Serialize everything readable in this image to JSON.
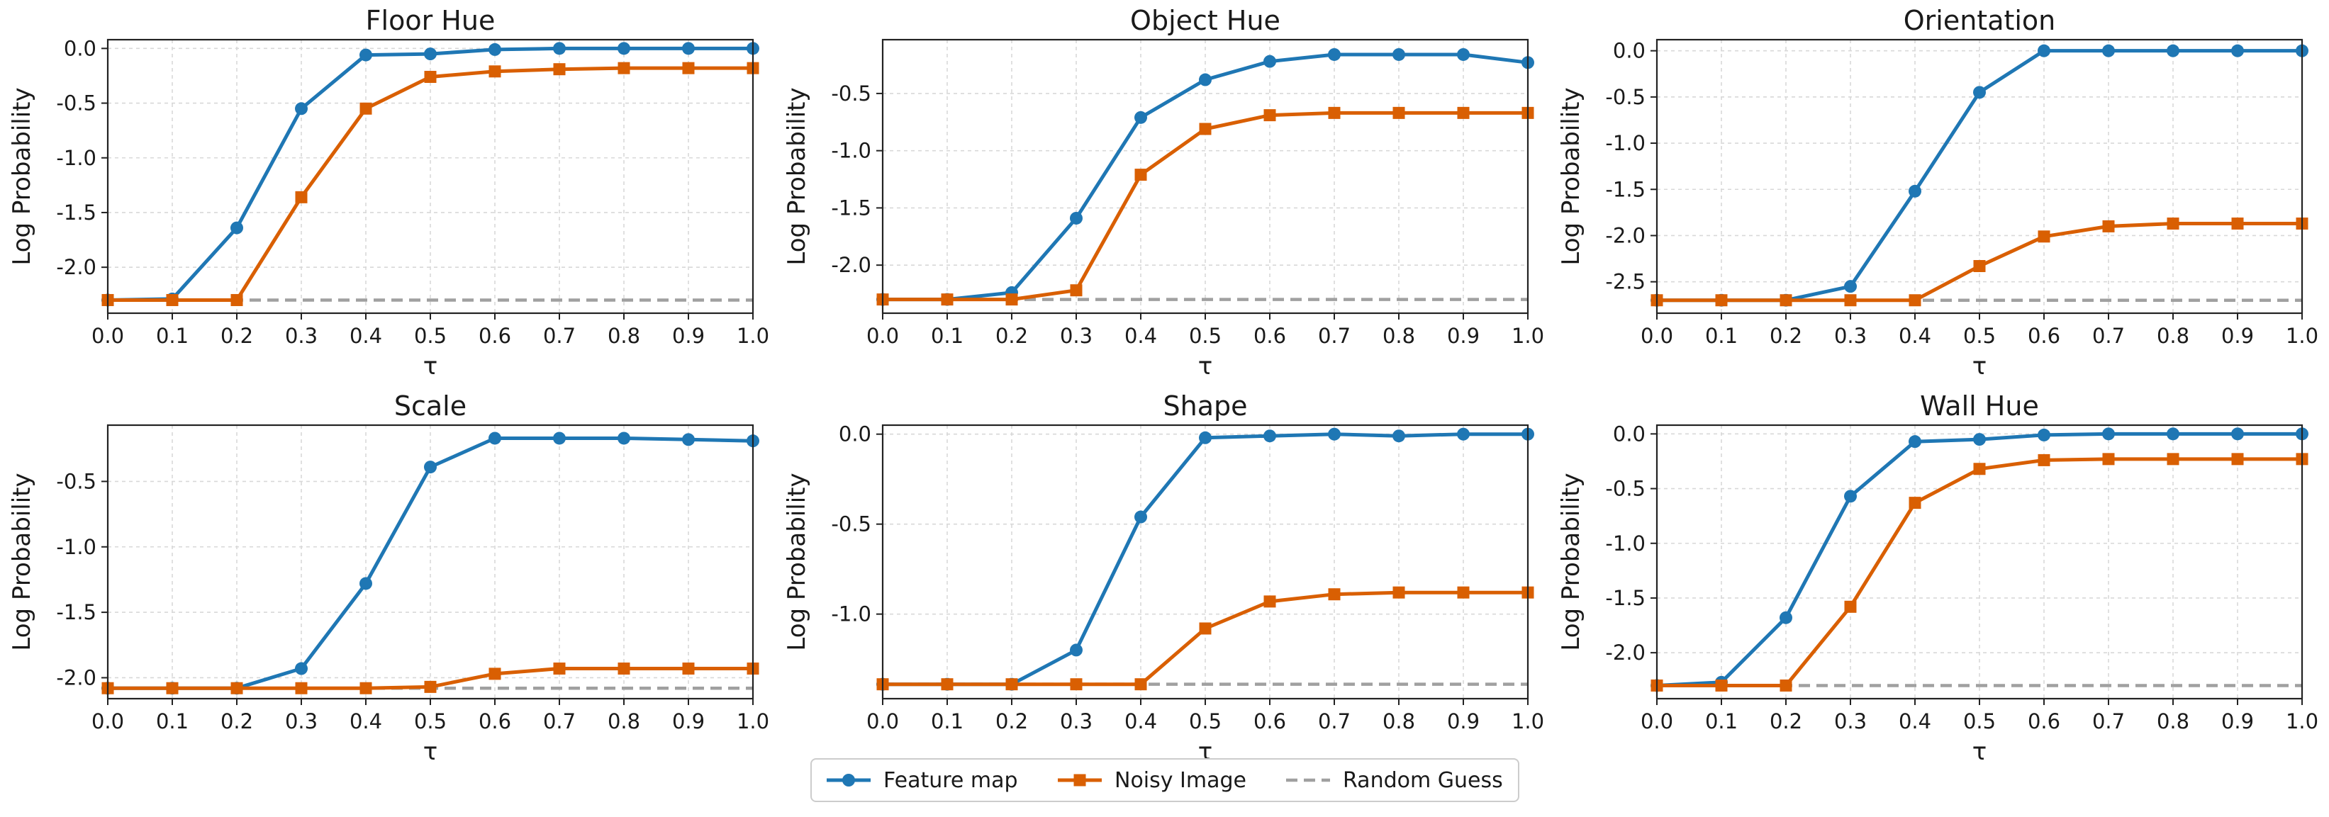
{
  "colors": {
    "feature_map": "#1f77b4",
    "noisy_image": "#d95f02",
    "random_guess": "#a0a0a0"
  },
  "legend": {
    "placement": "bottom-center",
    "items": [
      {
        "label": "Feature map",
        "marker": "circle",
        "line": "solid"
      },
      {
        "label": "Noisy Image",
        "marker": "square",
        "line": "solid"
      },
      {
        "label": "Random Guess",
        "marker": "none",
        "line": "dashed"
      }
    ]
  },
  "chart_data": [
    {
      "type": "line",
      "title": "Floor Hue",
      "xlabel": "τ",
      "ylabel": "Log Probability",
      "x": [
        0.0,
        0.1,
        0.2,
        0.3,
        0.4,
        0.5,
        0.6,
        0.7,
        0.8,
        0.9,
        1.0
      ],
      "xlim": [
        0,
        1
      ],
      "ylim": [
        -2.42,
        0.08
      ],
      "yticks": [
        "0.0",
        "-0.5",
        "-1.0",
        "-1.5",
        "-2.0"
      ],
      "ytick_values": [
        0,
        -0.5,
        -1.0,
        -1.5,
        -2.0
      ],
      "grid": true,
      "series": [
        {
          "name": "Feature map",
          "values": [
            -2.3,
            -2.29,
            -1.64,
            -0.55,
            -0.06,
            -0.05,
            -0.01,
            0.0,
            0.0,
            0.0,
            0.0
          ]
        },
        {
          "name": "Noisy Image",
          "values": [
            -2.3,
            -2.3,
            -2.3,
            -1.36,
            -0.55,
            -0.26,
            -0.21,
            -0.19,
            -0.18,
            -0.18,
            -0.18
          ]
        }
      ],
      "random_guess": -2.3
    },
    {
      "type": "line",
      "title": "Object Hue",
      "xlabel": "τ",
      "ylabel": "Log Probability",
      "x": [
        0.0,
        0.1,
        0.2,
        0.3,
        0.4,
        0.5,
        0.6,
        0.7,
        0.8,
        0.9,
        1.0
      ],
      "xlim": [
        0,
        1
      ],
      "ylim": [
        -2.42,
        -0.03
      ],
      "yticks": [
        "-0.5",
        "-1.0",
        "-1.5",
        "-2.0"
      ],
      "ytick_values": [
        -0.5,
        -1.0,
        -1.5,
        -2.0
      ],
      "grid": true,
      "series": [
        {
          "name": "Feature map",
          "values": [
            -2.3,
            -2.3,
            -2.24,
            -1.59,
            -0.71,
            -0.38,
            -0.22,
            -0.16,
            -0.16,
            -0.16,
            -0.23
          ]
        },
        {
          "name": "Noisy Image",
          "values": [
            -2.3,
            -2.3,
            -2.3,
            -2.22,
            -1.21,
            -0.81,
            -0.69,
            -0.67,
            -0.67,
            -0.67,
            -0.67
          ]
        }
      ],
      "random_guess": -2.3
    },
    {
      "type": "line",
      "title": "Orientation",
      "xlabel": "τ",
      "ylabel": "Log Probability",
      "x": [
        0.0,
        0.1,
        0.2,
        0.3,
        0.4,
        0.5,
        0.6,
        0.7,
        0.8,
        0.9,
        1.0
      ],
      "xlim": [
        0,
        1
      ],
      "ylim": [
        -2.84,
        0.12
      ],
      "yticks": [
        "0.0",
        "-0.5",
        "-1.0",
        "-1.5",
        "-2.0",
        "-2.5"
      ],
      "ytick_values": [
        0,
        -0.5,
        -1.0,
        -1.5,
        -2.0,
        -2.5
      ],
      "grid": true,
      "series": [
        {
          "name": "Feature map",
          "values": [
            -2.7,
            -2.7,
            -2.7,
            -2.55,
            -1.52,
            -0.45,
            0.0,
            0.0,
            0.0,
            0.0,
            0.0
          ]
        },
        {
          "name": "Noisy Image",
          "values": [
            -2.7,
            -2.7,
            -2.7,
            -2.7,
            -2.7,
            -2.33,
            -2.01,
            -1.9,
            -1.87,
            -1.87,
            -1.87
          ]
        }
      ],
      "random_guess": -2.7
    },
    {
      "type": "line",
      "title": "Scale",
      "xlabel": "τ",
      "ylabel": "Log Probability",
      "x": [
        0.0,
        0.1,
        0.2,
        0.3,
        0.4,
        0.5,
        0.6,
        0.7,
        0.8,
        0.9,
        1.0
      ],
      "xlim": [
        0,
        1
      ],
      "ylim": [
        -2.16,
        -0.07
      ],
      "yticks": [
        "-0.5",
        "-1.0",
        "-1.5",
        "-2.0"
      ],
      "ytick_values": [
        -0.5,
        -1.0,
        -1.5,
        -2.0
      ],
      "grid": true,
      "series": [
        {
          "name": "Feature map",
          "values": [
            -2.08,
            -2.08,
            -2.08,
            -1.93,
            -1.28,
            -0.39,
            -0.17,
            -0.17,
            -0.17,
            -0.18,
            -0.19
          ]
        },
        {
          "name": "Noisy Image",
          "values": [
            -2.08,
            -2.08,
            -2.08,
            -2.08,
            -2.08,
            -2.07,
            -1.97,
            -1.93,
            -1.93,
            -1.93,
            -1.93
          ]
        }
      ],
      "random_guess": -2.08
    },
    {
      "type": "line",
      "title": "Shape",
      "xlabel": "τ",
      "ylabel": "Log Probability",
      "x": [
        0.0,
        0.1,
        0.2,
        0.3,
        0.4,
        0.5,
        0.6,
        0.7,
        0.8,
        0.9,
        1.0
      ],
      "xlim": [
        0,
        1
      ],
      "ylim": [
        -1.47,
        0.05
      ],
      "yticks": [
        "0.0",
        "-0.5",
        "-1.0"
      ],
      "ytick_values": [
        0,
        -0.5,
        -1.0
      ],
      "grid": true,
      "series": [
        {
          "name": "Feature map",
          "values": [
            -1.39,
            -1.39,
            -1.39,
            -1.2,
            -0.46,
            -0.02,
            -0.01,
            0.0,
            -0.01,
            0.0,
            0.0
          ]
        },
        {
          "name": "Noisy Image",
          "values": [
            -1.39,
            -1.39,
            -1.39,
            -1.39,
            -1.39,
            -1.08,
            -0.93,
            -0.89,
            -0.88,
            -0.88,
            -0.88
          ]
        }
      ],
      "random_guess": -1.39
    },
    {
      "type": "line",
      "title": "Wall Hue",
      "xlabel": "τ",
      "ylabel": "Log Probability",
      "x": [
        0.0,
        0.1,
        0.2,
        0.3,
        0.4,
        0.5,
        0.6,
        0.7,
        0.8,
        0.9,
        1.0
      ],
      "xlim": [
        0,
        1
      ],
      "ylim": [
        -2.42,
        0.08
      ],
      "yticks": [
        "0.0",
        "-0.5",
        "-1.0",
        "-1.5",
        "-2.0"
      ],
      "ytick_values": [
        0,
        -0.5,
        -1.0,
        -1.5,
        -2.0
      ],
      "grid": true,
      "series": [
        {
          "name": "Feature map",
          "values": [
            -2.3,
            -2.27,
            -1.68,
            -0.57,
            -0.07,
            -0.05,
            -0.01,
            0.0,
            0.0,
            0.0,
            0.0
          ]
        },
        {
          "name": "Noisy Image",
          "values": [
            -2.3,
            -2.3,
            -2.3,
            -1.58,
            -0.63,
            -0.32,
            -0.24,
            -0.23,
            -0.23,
            -0.23,
            -0.23
          ]
        }
      ],
      "random_guess": -2.3
    }
  ]
}
